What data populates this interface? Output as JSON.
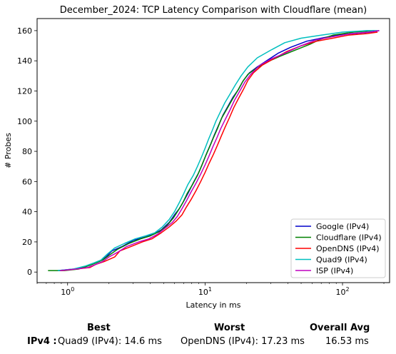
{
  "chart_data": {
    "type": "line",
    "title": "December_2024: TCP Latency Comparison with Cloudflare (mean)",
    "xlabel": "Latency in ms",
    "ylabel": "# Probes",
    "xscale": "log",
    "xlim": [
      0.6,
      220
    ],
    "ylim": [
      -7,
      168
    ],
    "xticks": [
      {
        "value": 1,
        "label": "10^0"
      },
      {
        "value": 10,
        "label": "10^1"
      },
      {
        "value": 100,
        "label": "10^2"
      }
    ],
    "yticks": [
      0,
      20,
      40,
      60,
      80,
      100,
      120,
      140,
      160
    ],
    "grid": false,
    "legend_position": "bottom-right",
    "series": [
      {
        "name": "Google (IPv4)",
        "color": "#0000cc",
        "points": [
          [
            0.85,
            1
          ],
          [
            1.1,
            2
          ],
          [
            1.3,
            3
          ],
          [
            1.5,
            5
          ],
          [
            1.7,
            7
          ],
          [
            1.9,
            10
          ],
          [
            2.1,
            14
          ],
          [
            2.5,
            17
          ],
          [
            3,
            21
          ],
          [
            3.6,
            23
          ],
          [
            4.2,
            25
          ],
          [
            4.8,
            28
          ],
          [
            5.5,
            33
          ],
          [
            6,
            38
          ],
          [
            6.5,
            42
          ],
          [
            7,
            47
          ],
          [
            7.6,
            53
          ],
          [
            8.3,
            60
          ],
          [
            9,
            66
          ],
          [
            9.6,
            72
          ],
          [
            10.3,
            79
          ],
          [
            11,
            85
          ],
          [
            11.7,
            91
          ],
          [
            12.5,
            97
          ],
          [
            13.5,
            104
          ],
          [
            14.7,
            110
          ],
          [
            16,
            116
          ],
          [
            17.5,
            121
          ],
          [
            19,
            127
          ],
          [
            21,
            132
          ],
          [
            24,
            136
          ],
          [
            28,
            140
          ],
          [
            34,
            145
          ],
          [
            42,
            149
          ],
          [
            55,
            153
          ],
          [
            70,
            155
          ],
          [
            90,
            157
          ],
          [
            120,
            158
          ],
          [
            160,
            159
          ],
          [
            185,
            160
          ]
        ]
      },
      {
        "name": "Cloudflare (IPv4)",
        "color": "#008000",
        "points": [
          [
            0.72,
            1
          ],
          [
            0.95,
            1
          ],
          [
            1.2,
            2
          ],
          [
            1.4,
            4
          ],
          [
            1.6,
            6
          ],
          [
            1.8,
            8
          ],
          [
            2,
            11
          ],
          [
            2.3,
            15
          ],
          [
            2.8,
            19
          ],
          [
            3.4,
            22
          ],
          [
            4,
            24
          ],
          [
            4.7,
            27
          ],
          [
            5.3,
            31
          ],
          [
            5.9,
            36
          ],
          [
            6.4,
            41
          ],
          [
            6.9,
            46
          ],
          [
            7.4,
            52
          ],
          [
            8.1,
            58
          ],
          [
            8.8,
            64
          ],
          [
            9.4,
            70
          ],
          [
            10.1,
            77
          ],
          [
            10.8,
            83
          ],
          [
            11.5,
            89
          ],
          [
            12.3,
            95
          ],
          [
            13.2,
            102
          ],
          [
            14.4,
            108
          ],
          [
            15.7,
            114
          ],
          [
            17.2,
            120
          ],
          [
            18.7,
            126
          ],
          [
            20.5,
            131
          ],
          [
            23.5,
            135
          ],
          [
            28,
            139
          ],
          [
            35,
            143
          ],
          [
            45,
            147
          ],
          [
            58,
            151
          ],
          [
            68,
            154
          ],
          [
            85,
            157
          ],
          [
            120,
            159
          ],
          [
            170,
            160
          ]
        ]
      },
      {
        "name": "OpenDNS (IPv4)",
        "color": "#ff0000",
        "points": [
          [
            0.9,
            1
          ],
          [
            1.15,
            2
          ],
          [
            1.45,
            3
          ],
          [
            1.6,
            5
          ],
          [
            1.85,
            7
          ],
          [
            2.2,
            10
          ],
          [
            2.4,
            14
          ],
          [
            2.9,
            17
          ],
          [
            3.5,
            20
          ],
          [
            4.1,
            22
          ],
          [
            4.8,
            26
          ],
          [
            5.5,
            30
          ],
          [
            6.2,
            34
          ],
          [
            6.8,
            38
          ],
          [
            7.3,
            43
          ],
          [
            7.9,
            48
          ],
          [
            8.6,
            54
          ],
          [
            9.3,
            60
          ],
          [
            10,
            66
          ],
          [
            10.7,
            72
          ],
          [
            11.5,
            78
          ],
          [
            12.3,
            84
          ],
          [
            13.1,
            90
          ],
          [
            14,
            96
          ],
          [
            15,
            102
          ],
          [
            16.2,
            109
          ],
          [
            17.5,
            115
          ],
          [
            19,
            121
          ],
          [
            20.5,
            127
          ],
          [
            22.5,
            132
          ],
          [
            26,
            137
          ],
          [
            31,
            141
          ],
          [
            39,
            146
          ],
          [
            50,
            150
          ],
          [
            65,
            153
          ],
          [
            85,
            155
          ],
          [
            110,
            157
          ],
          [
            150,
            158
          ],
          [
            180,
            159
          ]
        ]
      },
      {
        "name": "Quad9 (IPv4)",
        "color": "#00bfbf",
        "points": [
          [
            0.85,
            1
          ],
          [
            1.1,
            2
          ],
          [
            1.35,
            4
          ],
          [
            1.55,
            6
          ],
          [
            1.75,
            8
          ],
          [
            1.95,
            12
          ],
          [
            2.2,
            16
          ],
          [
            2.6,
            19
          ],
          [
            3.1,
            22
          ],
          [
            3.7,
            24
          ],
          [
            4.3,
            26
          ],
          [
            4.9,
            30
          ],
          [
            5.5,
            35
          ],
          [
            6,
            40
          ],
          [
            6.5,
            46
          ],
          [
            7,
            52
          ],
          [
            7.5,
            58
          ],
          [
            8.2,
            64
          ],
          [
            8.8,
            70
          ],
          [
            9.4,
            76
          ],
          [
            10,
            82
          ],
          [
            10.6,
            88
          ],
          [
            11.3,
            94
          ],
          [
            12,
            100
          ],
          [
            12.9,
            106
          ],
          [
            13.9,
            112
          ],
          [
            15.2,
            118
          ],
          [
            16.6,
            124
          ],
          [
            18.3,
            130
          ],
          [
            20.5,
            136
          ],
          [
            24,
            142
          ],
          [
            30,
            147
          ],
          [
            38,
            152
          ],
          [
            50,
            155
          ],
          [
            70,
            157
          ],
          [
            100,
            159
          ],
          [
            150,
            160
          ],
          [
            180,
            160
          ]
        ]
      },
      {
        "name": "ISP (IPv4)",
        "color": "#bf00bf",
        "points": [
          [
            0.88,
            1
          ],
          [
            1.15,
            2
          ],
          [
            1.4,
            3
          ],
          [
            1.6,
            5
          ],
          [
            1.8,
            7
          ],
          [
            2,
            10
          ],
          [
            2.3,
            13
          ],
          [
            2.7,
            17
          ],
          [
            3.3,
            20
          ],
          [
            3.9,
            22
          ],
          [
            4.5,
            25
          ],
          [
            5.1,
            29
          ],
          [
            5.8,
            33
          ],
          [
            6.3,
            37
          ],
          [
            6.8,
            42
          ],
          [
            7.3,
            47
          ],
          [
            7.9,
            53
          ],
          [
            8.6,
            59
          ],
          [
            9.3,
            65
          ],
          [
            10,
            71
          ],
          [
            10.7,
            77
          ],
          [
            11.4,
            83
          ],
          [
            12.2,
            89
          ],
          [
            13,
            95
          ],
          [
            14,
            101
          ],
          [
            15.1,
            107
          ],
          [
            16.4,
            114
          ],
          [
            17.9,
            120
          ],
          [
            19.5,
            126
          ],
          [
            21.5,
            131
          ],
          [
            25,
            137
          ],
          [
            30,
            141
          ],
          [
            38,
            145
          ],
          [
            50,
            150
          ],
          [
            65,
            154
          ],
          [
            85,
            156
          ],
          [
            115,
            158
          ],
          [
            155,
            159
          ],
          [
            185,
            160
          ]
        ]
      }
    ]
  },
  "summary": {
    "headers": {
      "best": "Best",
      "worst": "Worst",
      "avg": "Overall Avg"
    },
    "row_label": "IPv4 :",
    "best": "Quad9 (IPv4): 14.6 ms",
    "worst": "OpenDNS (IPv4): 17.23 ms",
    "avg": "16.53 ms"
  }
}
